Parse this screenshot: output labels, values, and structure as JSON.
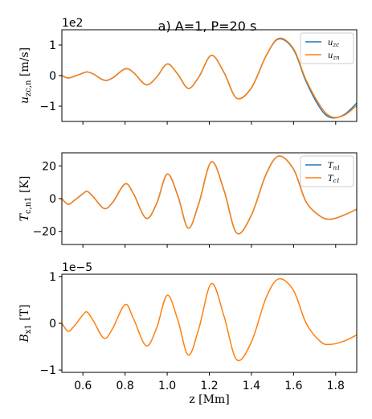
{
  "title": "a) A=1, P=20 s",
  "colors": {
    "blue": "#1f77b4",
    "orange": "#ff7f0e"
  },
  "chart_data": [
    {
      "type": "line",
      "ylabel": "u_zc,n [m/s]",
      "ylabel_parts": {
        "main": "u",
        "sub": "zc,n",
        "unit": " [m/s]"
      },
      "multiplier": "1e2",
      "xlim": [
        0.5,
        1.9
      ],
      "ylim": [
        -1.5,
        1.5
      ],
      "yticks": [
        -1,
        0,
        1
      ],
      "ytick_labels": [
        "−1",
        "0",
        "1"
      ],
      "legend": {
        "position": "top-right",
        "entries": [
          {
            "main": "u",
            "sub": "zc"
          },
          {
            "main": "u",
            "sub": "zn"
          }
        ]
      },
      "x": [
        0.5,
        0.53,
        0.56,
        0.6,
        0.62,
        0.65,
        0.7,
        0.74,
        0.8,
        0.84,
        0.9,
        0.95,
        1.0,
        1.05,
        1.1,
        1.15,
        1.21,
        1.27,
        1.33,
        1.4,
        1.47,
        1.53,
        1.6,
        1.66,
        1.73,
        1.78,
        1.84,
        1.9
      ],
      "series": [
        {
          "name": "u_zc",
          "color": "blue",
          "values": [
            0.0,
            -0.08,
            -0.02,
            0.08,
            0.12,
            0.05,
            -0.15,
            -0.08,
            0.22,
            0.1,
            -0.3,
            -0.05,
            0.38,
            0.05,
            -0.42,
            -0.05,
            0.66,
            0.1,
            -0.74,
            -0.4,
            0.65,
            1.2,
            0.85,
            -0.2,
            -1.1,
            -1.38,
            -1.28,
            -0.9
          ]
        },
        {
          "name": "u_zn",
          "color": "orange",
          "values": [
            0.0,
            -0.08,
            -0.02,
            0.08,
            0.12,
            0.05,
            -0.15,
            -0.08,
            0.22,
            0.1,
            -0.3,
            -0.05,
            0.38,
            0.05,
            -0.42,
            -0.05,
            0.66,
            0.1,
            -0.74,
            -0.4,
            0.65,
            1.22,
            0.88,
            -0.15,
            -1.02,
            -1.35,
            -1.3,
            -0.98
          ]
        }
      ]
    },
    {
      "type": "line",
      "ylabel": "T_c,n1 [K]",
      "ylabel_parts": {
        "main": "T",
        "sub": "c,n1",
        "unit": " [K]"
      },
      "multiplier": "",
      "xlim": [
        0.5,
        1.9
      ],
      "ylim": [
        -28,
        28
      ],
      "yticks": [
        -20,
        0,
        20
      ],
      "ytick_labels": [
        "−20",
        "0",
        "20"
      ],
      "legend": {
        "position": "top-right",
        "entries": [
          {
            "main": "T",
            "sub": "n1"
          },
          {
            "main": "T",
            "sub": "c1"
          }
        ]
      },
      "x": [
        0.5,
        0.53,
        0.56,
        0.6,
        0.62,
        0.65,
        0.7,
        0.74,
        0.8,
        0.84,
        0.9,
        0.95,
        1.0,
        1.05,
        1.1,
        1.15,
        1.21,
        1.27,
        1.33,
        1.4,
        1.47,
        1.53,
        1.6,
        1.66,
        1.73,
        1.78,
        1.84,
        1.9
      ],
      "series": [
        {
          "name": "T_n1",
          "color": "blue",
          "values": [
            0.0,
            -3.5,
            -1.0,
            3.0,
            4.5,
            1.0,
            -6.0,
            -2.5,
            9.0,
            3.0,
            -12.0,
            -3.0,
            15.0,
            2.0,
            -18.0,
            -3.0,
            22.5,
            5.0,
            -21.0,
            -10.0,
            15.0,
            26.0,
            18.0,
            -2.0,
            -11.0,
            -12.5,
            -10.0,
            -6.5
          ]
        },
        {
          "name": "T_c1",
          "color": "orange",
          "values": [
            0.0,
            -3.5,
            -1.0,
            3.0,
            4.5,
            1.0,
            -6.0,
            -2.5,
            9.0,
            3.0,
            -12.0,
            -3.0,
            15.0,
            2.0,
            -18.0,
            -3.0,
            22.5,
            5.0,
            -21.0,
            -10.0,
            15.0,
            26.0,
            18.0,
            -2.0,
            -11.0,
            -12.5,
            -10.0,
            -6.5
          ]
        }
      ]
    },
    {
      "type": "line",
      "ylabel": "B_x1 [T]",
      "ylabel_parts": {
        "main": "B",
        "sub": "x1",
        "unit": " [T]"
      },
      "multiplier": "1e−5",
      "xlim": [
        0.5,
        1.9
      ],
      "ylim": [
        -1.05,
        1.05
      ],
      "yticks": [
        -1,
        0,
        1
      ],
      "ytick_labels": [
        "−1",
        "0",
        "1"
      ],
      "xticks": [
        0.6,
        0.8,
        1.0,
        1.2,
        1.4,
        1.6,
        1.8
      ],
      "xtick_labels": [
        "0.6",
        "0.8",
        "1.0",
        "1.2",
        "1.4",
        "1.6",
        "1.8"
      ],
      "xlabel": "z [Mm]",
      "x": [
        0.5,
        0.53,
        0.56,
        0.6,
        0.62,
        0.65,
        0.7,
        0.74,
        0.8,
        0.84,
        0.9,
        0.95,
        1.0,
        1.05,
        1.1,
        1.15,
        1.21,
        1.27,
        1.33,
        1.4,
        1.47,
        1.53,
        1.6,
        1.66,
        1.73,
        1.78,
        1.84,
        1.9
      ],
      "series": [
        {
          "name": "B_x1",
          "color": "orange",
          "values": [
            0.0,
            -0.17,
            -0.05,
            0.18,
            0.24,
            0.05,
            -0.32,
            -0.12,
            0.4,
            0.1,
            -0.48,
            -0.1,
            0.6,
            0.08,
            -0.68,
            -0.12,
            0.85,
            0.15,
            -0.78,
            -0.4,
            0.55,
            0.95,
            0.7,
            0.0,
            -0.4,
            -0.45,
            -0.38,
            -0.25
          ]
        }
      ]
    }
  ]
}
